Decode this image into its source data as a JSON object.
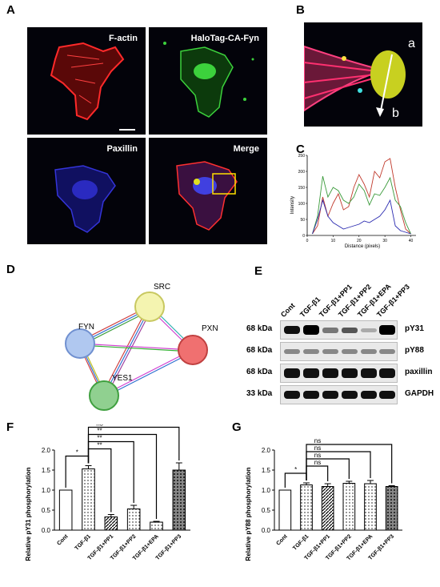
{
  "panels": {
    "A": "A",
    "B": "B",
    "C": "C",
    "D": "D",
    "E": "E",
    "F": "F",
    "G": "G"
  },
  "panel_a": {
    "labels": [
      "F-actin",
      "HaloTag-CA-Fyn",
      "Paxillin",
      "Merge"
    ]
  },
  "panel_b": {
    "point_a": "a",
    "point_b": "b"
  },
  "panel_c": {
    "type": "line",
    "ylabel": "Intensity",
    "xlabel": "Distance (pixels)",
    "xlim": [
      0,
      42
    ],
    "ylim": [
      0,
      250
    ],
    "xticks": [
      0,
      10,
      20,
      30,
      40
    ],
    "yticks": [
      0,
      50,
      100,
      150,
      200,
      250
    ],
    "colors": {
      "red": "#c0392b",
      "green": "#3a9a3a",
      "blue": "#2b2bb0"
    },
    "series": [
      {
        "color": "red",
        "x": [
          2,
          4,
          6,
          8,
          10,
          12,
          14,
          16,
          18,
          20,
          22,
          24,
          26,
          28,
          30,
          32,
          34,
          36,
          38,
          40
        ],
        "y": [
          5,
          30,
          120,
          60,
          100,
          130,
          80,
          90,
          150,
          190,
          160,
          120,
          200,
          180,
          230,
          240,
          150,
          80,
          20,
          5
        ]
      },
      {
        "color": "green",
        "x": [
          2,
          4,
          6,
          8,
          10,
          12,
          14,
          16,
          18,
          20,
          22,
          24,
          26,
          28,
          30,
          32,
          34,
          36,
          38,
          40
        ],
        "y": [
          5,
          60,
          185,
          120,
          150,
          140,
          110,
          100,
          120,
          160,
          140,
          95,
          130,
          125,
          150,
          180,
          110,
          90,
          40,
          5
        ]
      },
      {
        "color": "blue",
        "x": [
          2,
          4,
          6,
          8,
          10,
          12,
          14,
          16,
          18,
          20,
          22,
          24,
          26,
          28,
          30,
          32,
          34,
          36,
          38,
          40
        ],
        "y": [
          5,
          50,
          110,
          60,
          40,
          30,
          20,
          25,
          30,
          35,
          45,
          40,
          50,
          60,
          80,
          110,
          30,
          15,
          10,
          5
        ]
      }
    ]
  },
  "panel_d": {
    "nodes": [
      "SRC",
      "FYN",
      "PXN",
      "YES1"
    ]
  },
  "panel_e": {
    "lanes": [
      "Cont",
      "TGF-β1",
      "TGF-β1+PP1",
      "TGF-β1+PP2",
      "TGF-β1+EPA",
      "TGF-β1+PP3"
    ],
    "rows": [
      {
        "kda": "68 kDa",
        "protein": "pY31"
      },
      {
        "kda": "68 kDa",
        "protein": "pY88"
      },
      {
        "kda": "68 kDa",
        "protein": "paxillin"
      },
      {
        "kda": "33 kDa",
        "protein": "GAPDH"
      }
    ]
  },
  "chart_data": [
    {
      "type": "bar",
      "ylabel": "Relative pY31 phosphorylation",
      "categories": [
        "Cont",
        "TGF-β1",
        "TGF-β1+PP1",
        "TGF-β1+PP2",
        "TGF-β1+EPA",
        "TGF-β1+PP3"
      ],
      "values": [
        1.0,
        1.53,
        0.33,
        0.53,
        0.2,
        1.5
      ],
      "errors": [
        0,
        0.08,
        0.06,
        0.09,
        0.02,
        0.18
      ],
      "ylim": [
        0,
        2.0
      ],
      "yticks": [
        "0.0",
        "0.5",
        "1.0",
        "1.5",
        "2.0"
      ],
      "significance": [
        "*",
        "**",
        "**",
        "**",
        "ns"
      ]
    },
    {
      "type": "bar",
      "ylabel": "Relative pY88 phosphorylation",
      "categories": [
        "Cont",
        "TGF-β1",
        "TGF-β1+PP1",
        "TGF-β1+PP2",
        "TGF-β1+EPA",
        "TGF-β1+PP3"
      ],
      "values": [
        1.0,
        1.13,
        1.09,
        1.17,
        1.16,
        1.09
      ],
      "errors": [
        0,
        0.05,
        0.07,
        0.05,
        0.08,
        0.02
      ],
      "ylim": [
        0,
        2.0
      ],
      "yticks": [
        "0.0",
        "0.5",
        "1.0",
        "1.5",
        "2.0"
      ],
      "significance": [
        "*",
        "ns",
        "ns",
        "ns",
        "ns"
      ]
    }
  ]
}
